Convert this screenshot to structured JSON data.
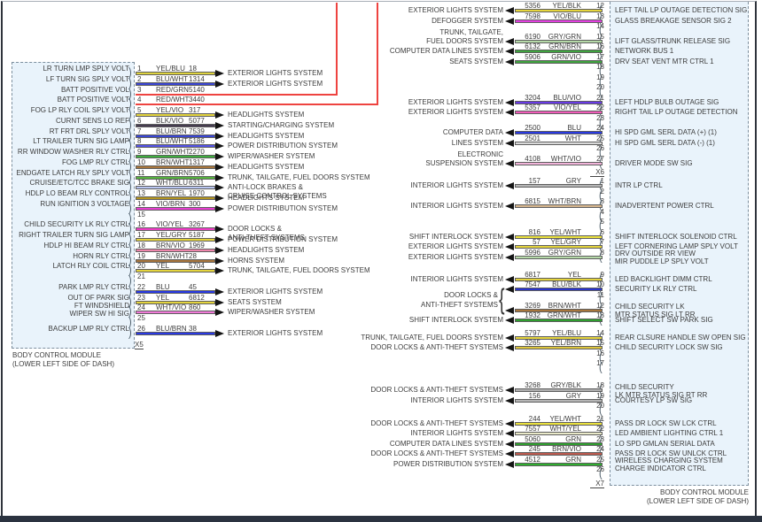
{
  "left_module": {
    "name": "BODY CONTROL MODULE",
    "location": "(LOWER LEFT SIDE OF DASH)",
    "connector": "X5",
    "pins": [
      {
        "pin": "1",
        "circuit": "18",
        "color": "YEL/BLU",
        "label": "LR TURN LMP SPLY VOLT",
        "dest": "EXTERIOR LIGHTS SYSTEM",
        "wire": "#ddd23e"
      },
      {
        "pin": "2",
        "circuit": "1314",
        "color": "BLU/WHT",
        "label": "LF TURN SIG SPLY VOLT",
        "dest": "EXTERIOR LIGHTS SYSTEM",
        "wire": "#3a46d4"
      },
      {
        "pin": "3",
        "circuit": "5140",
        "color": "RED/GRN",
        "label": "BATT POSITIVE VOL",
        "route_to_top": true,
        "wire": "#ee4340"
      },
      {
        "pin": "4",
        "circuit": "3440",
        "color": "RED/WHT",
        "label": "BATT POSITIVE VOLT",
        "route_to_top": true,
        "wire": "#ee4340"
      },
      {
        "pin": "5",
        "circuit": "317",
        "color": "YEL/VIO",
        "label": "FOG LP RLY COIL SPLY VOLT",
        "dest": "HEADLIGHTS SYSTEM",
        "wire": "#e4d43e"
      },
      {
        "pin": "6",
        "circuit": "5077",
        "color": "BLK/VIO",
        "label": "CURNT SENS LO REF",
        "dest": "STARTING/CHARGING SYSTEM",
        "wire": "#463c50"
      },
      {
        "pin": "7",
        "circuit": "7539",
        "color": "BLU/BRN",
        "label": "RT FRT DRL SPLY VOLT",
        "dest": "HEADLIGHTS SYSTEM",
        "wire": "#3a46d4"
      },
      {
        "pin": "8",
        "circuit": "5186",
        "color": "BLU/WHT",
        "label": "LT TRAILER TURN SIG LAMP",
        "dest": "POWER DISTRIBUTION SYSTEM",
        "wire": "#5553e6"
      },
      {
        "pin": "9",
        "circuit": "2270",
        "color": "GRN/WHT",
        "label": "RR WINDOW WASHER RLY CTRL",
        "dest": "WIPER/WASHER SYSTEM",
        "wire": "#3fae3f"
      },
      {
        "pin": "10",
        "circuit": "1317",
        "color": "BRN/WHT",
        "label": "FOG LMP RLY CTRL",
        "dest": "HEADLIGHTS SYSTEM",
        "wire": "#a8763c"
      },
      {
        "pin": "11",
        "circuit": "5706",
        "color": "GRN/BRN",
        "label": "ENDGATE LATCH RLY SPLY VOLT",
        "dest": "TRUNK, TAILGATE, FUEL DOORS SYSTEM",
        "wire": "#57b43f"
      },
      {
        "pin": "12",
        "circuit": "6311",
        "color": "WHT/BLU",
        "label": "CRUISE/ETC/TCC BRAKE SIG",
        "dest": [
          "ANTI-LOCK BRAKES &",
          "CRUISE CONTROL SYSTEMS"
        ],
        "wire": "#b9c6f2"
      },
      {
        "pin": "13",
        "circuit": "1970",
        "color": "BRN/YEL",
        "label": "HDLP LO BEAM RLY CONTROL",
        "dest": "HEADLIGHTS SYSTEM",
        "wire": "#b29422"
      },
      {
        "pin": "14",
        "circuit": "300",
        "color": "VIO/BRN",
        "label": "RUN IGNITION 3 VOLTAGE",
        "dest": "POWER DISTRIBUTION SYSTEM",
        "wire": "#e93fd2"
      },
      {
        "pin": "15"
      },
      {
        "pin": "16",
        "circuit": "3267",
        "color": "VIO/YEL",
        "label": "CHILD SECURITY LK RLY CTRL",
        "dest": [
          "DOOR LOCKS &",
          "ANTI-THEFT SYSTEMS"
        ],
        "wire": "#ef3cc6"
      },
      {
        "pin": "17",
        "circuit": "5187",
        "color": "YEL/GRY",
        "label": "RIGHT TRAILER TURN SIG LAMP",
        "dest": "POWER DISTRIBUTION SYSTEM",
        "wire": "#e4d43e"
      },
      {
        "pin": "18",
        "circuit": "1969",
        "color": "BRN/VIO",
        "label": "HDLP HI BEAM RLY CTRL",
        "dest": "HEADLIGHTS SYSTEM",
        "wire": "#ee86ac"
      },
      {
        "pin": "19",
        "circuit": "28",
        "color": "BRN/WHT",
        "label": "HORN RLY CTRL",
        "dest": "HORNS SYSTEM",
        "wire": "#a8763c"
      },
      {
        "pin": "20",
        "circuit": "5704",
        "color": "YEL",
        "label": "LATCH RLY COIL CTRL",
        "dest": "TRUNK, TAILGATE, FUEL DOORS SYSTEM",
        "wire": "#e4d43e"
      },
      {
        "pin": "21"
      },
      {
        "pin": "22",
        "circuit": "45",
        "color": "BLU",
        "label": "PARK LMP RLY CTRL",
        "dest": "EXTERIOR LIGHTS SYSTEM",
        "wire": "#2a3ae4"
      },
      {
        "pin": "23",
        "circuit": "6812",
        "color": "YEL",
        "label": "OUT OF PARK SIG",
        "dest": "SEATS SYSTEM",
        "wire": "#e4d43e"
      },
      {
        "pin": "24",
        "circuit": "860",
        "color": "WHT/VIO",
        "label": [
          "FT WINDSHIELD",
          "WIPER SW HI SIG"
        ],
        "dest": "WIPER/WASHER SYSTEM",
        "wire": "#f07ad8"
      },
      {
        "pin": "25"
      },
      {
        "pin": "26",
        "circuit": "38",
        "color": "BLU/BRN",
        "label": "BACKUP LMP RLY CTRL",
        "dest": "EXTERIOR LIGHTS SYSTEM",
        "wire": "#2a3ae4"
      }
    ]
  },
  "right_module": {
    "name": "BODY CONTROL MODULE",
    "location": "(LOWER LEFT SIDE OF DASH)",
    "sections": [
      {
        "connector": "X6",
        "pins": [
          {
            "pin": "12",
            "circuit": "5356",
            "color": "YEL/BLK",
            "dest": "EXTERIOR LIGHTS SYSTEM",
            "label": "LEFT TAIL LP OUTAGE DETECTION SIG",
            "wire": "#e6d63e"
          },
          {
            "pin": "13",
            "circuit": "7598",
            "color": "VIO/BLU",
            "dest": "DEFOGGER SYSTEM",
            "label": "GLASS BREAKAGE SENSOR SIG 2",
            "wire": "#e23fdf"
          },
          {
            "pin": "14"
          },
          {
            "pin": "15",
            "circuit": "6190",
            "color": "GRY/GRN",
            "dest": [
              "TRUNK, TAILGATE,",
              "FUEL DOORS SYSTEM"
            ],
            "label": "LIFT GLASS/TRUNK RELEASE SIG",
            "wire": "#b5d9a8"
          },
          {
            "pin": "16",
            "circuit": "6132",
            "color": "GRN/BRN",
            "dest": "COMPUTER DATA LINES SYSTEM",
            "label": "NETWORK BUS 1",
            "wire": "#3fa43f"
          },
          {
            "pin": "17",
            "circuit": "5906",
            "color": "GRN/VIO",
            "dest": "SEATS SYSTEM",
            "label": "DRV SEAT VENT MTR CTRL 1",
            "wire": "#3fa43f"
          },
          {
            "pin": "18"
          },
          {
            "pin": "19"
          },
          {
            "pin": "20"
          },
          {
            "pin": "21",
            "circuit": "3204",
            "color": "BLU/VIO",
            "dest": "EXTERIOR LIGHTS SYSTEM",
            "label": "LEFT HDLP BULB OUTAGE SIG",
            "wire": "#6a3ae8"
          },
          {
            "pin": "22",
            "circuit": "5357",
            "color": "VIO/YEL",
            "dest": "EXTERIOR LIGHTS SYSTEM",
            "label": "RIGHT TAIL LP OUTAGE DETECTION",
            "wire": "#f05ab8"
          },
          {
            "pin": "23"
          },
          {
            "pin": "24",
            "circuit": "2500",
            "color": "BLU",
            "dest": "COMPUTER DATA",
            "label": "HI SPD GML SERL DATA (+) (1)",
            "wire": "#2a3ae4"
          },
          {
            "pin": "25",
            "circuit": "2501",
            "color": "WHT",
            "dest": "LINES SYSTEM",
            "label": "HI SPD GML SERL DATA (-) (1)",
            "wire": "#d9d9d9"
          },
          {
            "pin": "26"
          },
          {
            "pin": "27",
            "circuit": "4108",
            "color": "WHT/VIO",
            "dest": [
              "ELECTRONIC",
              "SUSPENSION SYSTEM"
            ],
            "label": "DRIVER MODE SW SIG",
            "wire": "#f2b4da"
          }
        ]
      },
      {
        "connector": "X7",
        "pins": [
          {
            "pin": "1",
            "circuit": "157",
            "color": "GRY",
            "dest": "INTERIOR LIGHTS SYSTEM",
            "label": "INTR LP CTRL",
            "wire": "#b6b6b6"
          },
          {
            "pin": "2"
          },
          {
            "pin": "3",
            "circuit": "6815",
            "color": "WHT/BRN",
            "dest": "INTERIOR LIGHTS SYSTEM",
            "label": "INADVERTENT POWER CTRL",
            "wire": "#d6b68e"
          },
          {
            "pin": "4"
          },
          {
            "pin": "5"
          },
          {
            "pin": "6",
            "circuit": "816",
            "color": "YEL/WHT",
            "dest": "SHIFT INTERLOCK SYSTEM",
            "label": "SHIFT INTERLOCK SOLENOID CTRL",
            "wire": "#ebe23e"
          },
          {
            "pin": "7",
            "circuit": "57",
            "color": "YEL/GRY",
            "dest": "EXTERIOR LIGHTS SYSTEM",
            "label": "LEFT CORNERING LAMP SPLY VOLT",
            "wire": "#e4d43e"
          },
          {
            "pin": "8",
            "circuit": "5996",
            "color": "GRY/GRN",
            "dest": "EXTERIOR LIGHTS SYSTEM",
            "label": [
              "DRV OUTSIDE RR VIEW",
              "MIR PUDDLE LP SPLY VOLT"
            ],
            "wire": "#b5d9a8"
          },
          {
            "pin": "9",
            "circuit": "6817",
            "color": "YEL",
            "dest": "INTERIOR LIGHTS SYSTEM",
            "label": "LED BACKLIGHT DIMM CTRL",
            "wire": "#e4d43e"
          },
          {
            "pin": "10",
            "circuit": "7547",
            "color": "BLU/BLK",
            "group": "g1",
            "label": "SECURITY LK RLY CTRL",
            "wire": "#2a34cc"
          },
          {
            "pin": "11"
          },
          {
            "pin": "12",
            "circuit": "3269",
            "color": "BRN/WHT",
            "group": "g1",
            "label": [
              "CHILD SECURITY LK",
              "MTR STATUS SIG LT RR"
            ],
            "wire": "#a8763c"
          },
          {
            "pin": "13",
            "circuit": "1932",
            "color": "GRN/WHT",
            "dest": "SHIFT INTERLOCK SYSTEM",
            "label": "SHIFT SELECT SW PARK SIG",
            "wire": "#2f9e2f"
          },
          {
            "pin": "14",
            "circuit": "5797",
            "color": "YEL/BLU",
            "dest": "TRUNK, TAILGATE, FUEL DOORS SYSTEM",
            "label": "REAR CLSURE HANDLE SW OPEN SIG",
            "wire": "#e4d43e"
          },
          {
            "pin": "15",
            "circuit": "3265",
            "color": "YEL/BRN",
            "dest": "DOOR LOCKS & ANTI-THEFT SYSTEMS",
            "label": "CHILD SECURITY LOCK SW SIG",
            "wire": "#ddc63e"
          },
          {
            "pin": "16"
          },
          {
            "pin": "17"
          },
          {
            "pin": "18",
            "circuit": "3268",
            "color": "GRY/BLK",
            "dest": "DOOR LOCKS & ANTI-THEFT SYSTEMS",
            "label": [
              "CHILD SECURITY",
              "LK MTR STATUS SIG RT RR"
            ],
            "wire": "#aeaeae"
          },
          {
            "pin": "19",
            "circuit": "156",
            "color": "GRY",
            "dest": "INTERIOR LIGHTS SYSTEM",
            "label": "COURTESY LP SW SIG",
            "wire": "#b6b6b6"
          },
          {
            "pin": "20"
          },
          {
            "pin": "21",
            "circuit": "244",
            "color": "YEL/WHT",
            "dest": "DOOR LOCKS & ANTI-THEFT SYSTEMS",
            "label": "PASS DR LOCK SW LCK CTRL",
            "wire": "#ebe23e"
          },
          {
            "pin": "22",
            "circuit": "7557",
            "color": "WHT/YEL",
            "dest": "INTERIOR LIGHTS SYSTEM",
            "label": "LED AMBIENT LIGHTING CTRL 1",
            "wire": "#e9e9c8"
          },
          {
            "pin": "23",
            "circuit": "5060",
            "color": "GRN",
            "dest": "COMPUTER DATA LINES SYSTEM",
            "label": "LO SPD GMLAN SERIAL DATA",
            "wire": "#2f9e2f"
          },
          {
            "pin": "24",
            "circuit": "245",
            "color": "BRN/VIO",
            "dest": "DOOR LOCKS & ANTI-THEFT SYSTEMS",
            "label": "PASS DR LOCK SW UNLCK CTRL",
            "wire": "#bd5a4e"
          },
          {
            "pin": "25",
            "circuit": "4512",
            "color": "GRN",
            "dest": "POWER DISTRIBUTION SYSTEM",
            "label": [
              "WIRELESS CHARGING SYSTEM",
              "CHARGE INDICATOR CTRL"
            ],
            "wire": "#2fae2f"
          },
          {
            "pin": "26"
          }
        ]
      }
    ],
    "groups": {
      "g1": {
        "lines": [
          "DOOR LOCKS &",
          "ANTI-THEFT SYSTEMS"
        ]
      }
    }
  }
}
